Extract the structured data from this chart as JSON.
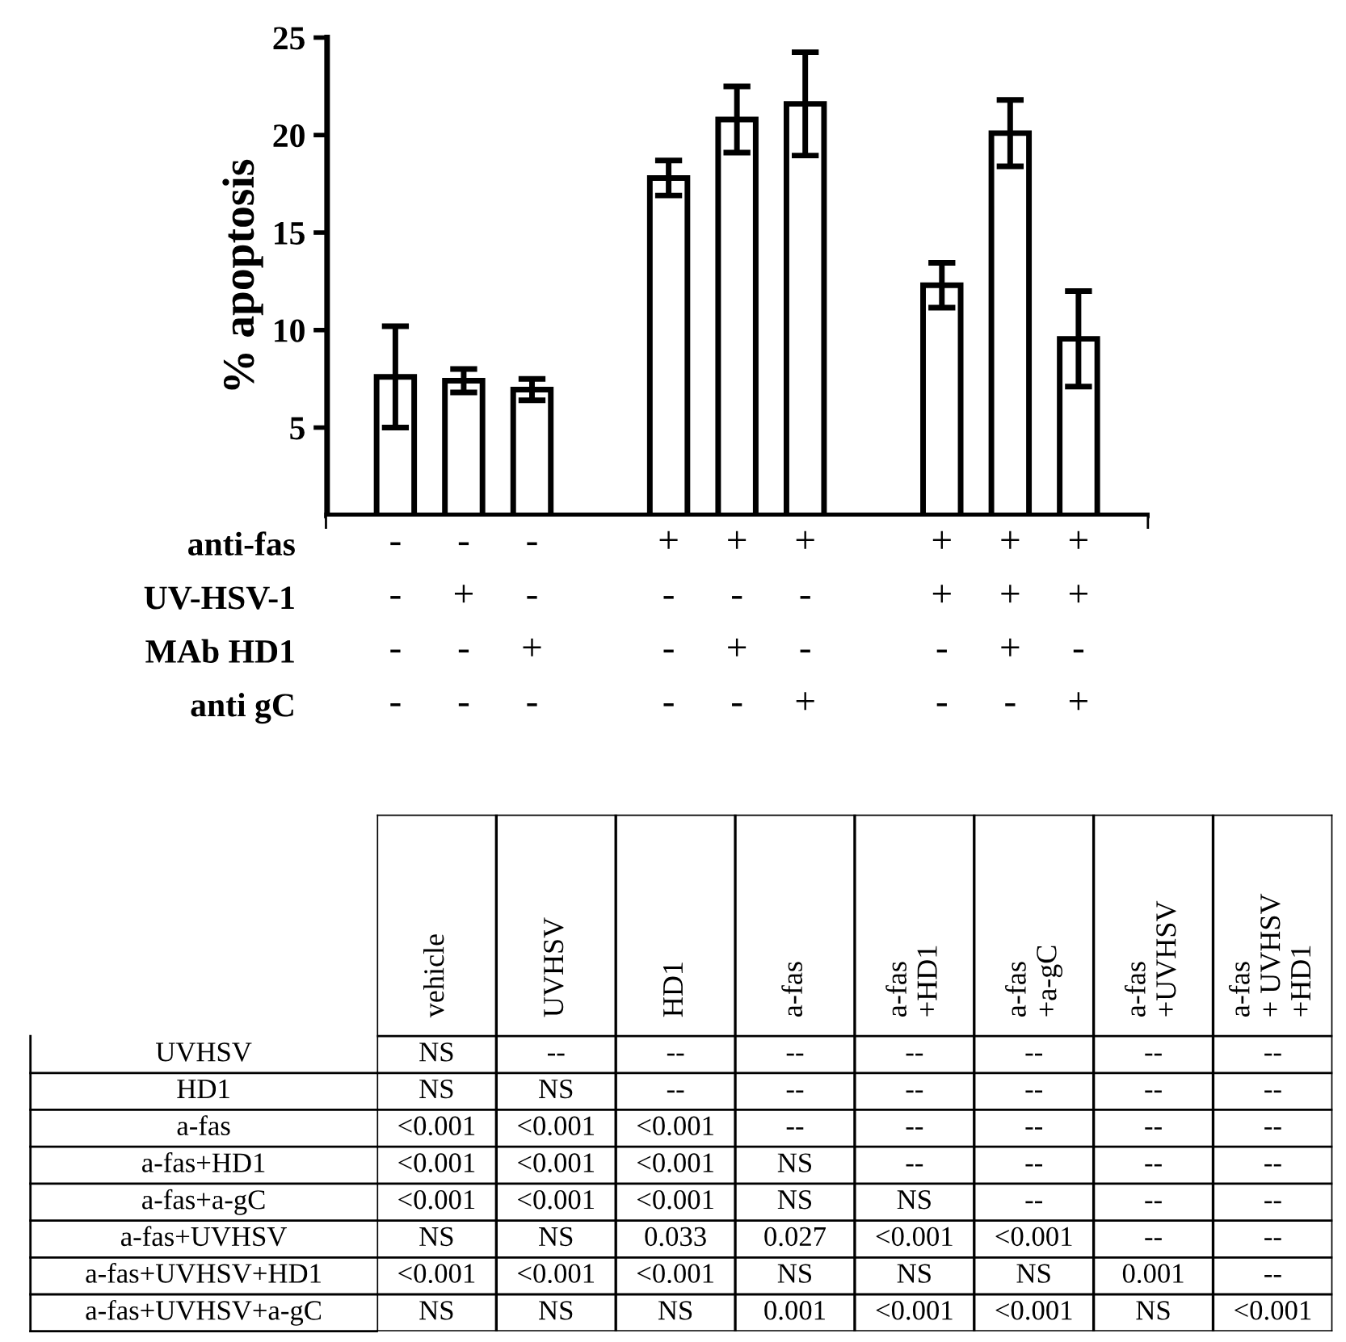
{
  "chart_data": [
    {
      "type": "bar",
      "ylabel": "% apoptosis",
      "categories": [
        null,
        null,
        null,
        null,
        null,
        null,
        null,
        null,
        null,
        null,
        null
      ],
      "series": [
        {
          "color": "#ffffff",
          "values": [
            7.6,
            7.4,
            6.95,
            null,
            17.8,
            20.8,
            21.6,
            null,
            12.3,
            20.1,
            9.55
          ],
          "errors": [
            2.6,
            0.6,
            0.55,
            null,
            0.9,
            1.7,
            2.65,
            null,
            1.15,
            1.7,
            2.45
          ]
        }
      ],
      "ylim": [
        0.5,
        25
      ],
      "yticks": [
        5,
        10,
        15,
        20,
        25
      ],
      "grid": false,
      "legend": false
    },
    {
      "type": "heatmap",
      "categories": [
        null,
        null,
        null,
        null,
        null,
        null,
        null,
        null,
        null,
        null,
        null
      ],
      "y_categories": [
        "anti-fas",
        "UV-HSV-1",
        "MAb HD1",
        "anti gC"
      ],
      "cells": [
        [
          null,
          null,
          null,
          null,
          null,
          null,
          null,
          null,
          null,
          null,
          null
        ],
        [
          null,
          null,
          null,
          null,
          null,
          null,
          null,
          null,
          null,
          null,
          null
        ],
        [
          null,
          null,
          null,
          null,
          null,
          null,
          null,
          null,
          null,
          null,
          null
        ],
        [
          null,
          null,
          null,
          null,
          null,
          null,
          null,
          null,
          null,
          null,
          null
        ]
      ],
      "cell_labels": [
        [
          "-",
          "-",
          "-",
          null,
          "+",
          "+",
          "+",
          null,
          "+",
          "+",
          "+"
        ],
        [
          "-",
          "+",
          "-",
          null,
          "-",
          "-",
          "-",
          null,
          "+",
          "+",
          "+"
        ],
        [
          "-",
          "-",
          "+",
          null,
          "-",
          "+",
          "-",
          null,
          "-",
          "+",
          "-"
        ],
        [
          "-",
          "-",
          "-",
          null,
          "-",
          "-",
          "+",
          null,
          "-",
          "-",
          "+"
        ]
      ]
    },
    {
      "type": "heatmap",
      "categories": [
        "vehicle",
        "UVHSV",
        "HD1",
        "a-fas",
        "a-fas\n+HD1",
        "a-fas\n+a-gC",
        "a-fas\n+UVHSV",
        "a-fas\n+ UVHSV\n+HD1"
      ],
      "y_categories": [
        "UVHSV",
        "HD1",
        "a-fas",
        "a-fas+HD1",
        "a-fas+a-gC",
        "a-fas+UVHSV",
        "a-fas+UVHSV+HD1",
        "a-fas+UVHSV+a-gC"
      ],
      "cells": [
        [
          null,
          null,
          null,
          null,
          null,
          null,
          null,
          null
        ],
        [
          null,
          null,
          null,
          null,
          null,
          null,
          null,
          null
        ],
        [
          null,
          null,
          null,
          null,
          null,
          null,
          null,
          null
        ],
        [
          null,
          null,
          null,
          null,
          null,
          null,
          null,
          null
        ],
        [
          null,
          null,
          null,
          null,
          null,
          null,
          null,
          null
        ],
        [
          null,
          null,
          null,
          null,
          null,
          null,
          null,
          null
        ],
        [
          null,
          null,
          null,
          null,
          null,
          null,
          null,
          null
        ],
        [
          null,
          null,
          null,
          null,
          null,
          null,
          null,
          null
        ]
      ],
      "cell_labels": [
        [
          "NS",
          "--",
          "--",
          "--",
          "--",
          "--",
          "--",
          "--"
        ],
        [
          "NS",
          "NS",
          "--",
          "--",
          "--",
          "--",
          "--",
          "--"
        ],
        [
          "<0.001",
          "<0.001",
          "<0.001",
          "--",
          "--",
          "--",
          "--",
          "--"
        ],
        [
          "<0.001",
          "<0.001",
          "<0.001",
          "NS",
          "--",
          "--",
          "--",
          "--"
        ],
        [
          "<0.001",
          "<0.001",
          "<0.001",
          "NS",
          "NS",
          "--",
          "--",
          "--"
        ],
        [
          "NS",
          "NS",
          "0.033",
          "0.027",
          "<0.001",
          "<0.001",
          "--",
          "--"
        ],
        [
          "<0.001",
          "<0.001",
          "<0.001",
          "NS",
          "NS",
          "NS",
          "0.001",
          "--"
        ],
        [
          "NS",
          "NS",
          "NS",
          "0.001",
          "<0.001",
          "<0.001",
          "NS",
          "<0.001"
        ]
      ]
    }
  ]
}
